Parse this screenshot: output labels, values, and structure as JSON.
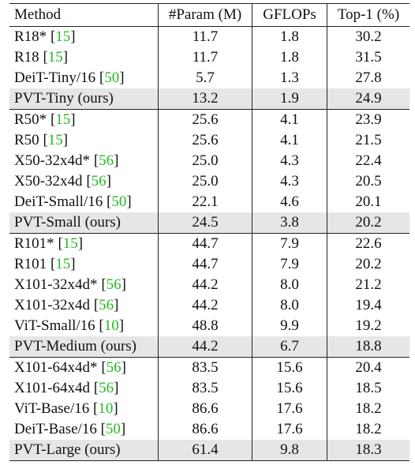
{
  "table": {
    "headers": {
      "method": "Method",
      "param": "#Param (M)",
      "gflops": "GFLOPs",
      "top1": "Top-1 (%)"
    },
    "rows": [
      {
        "name": "R18* ",
        "ref": "15",
        "param": "11.7",
        "gflops": "1.8",
        "top1": "30.2"
      },
      {
        "name": "R18 ",
        "ref": "15",
        "param": "11.7",
        "gflops": "1.8",
        "top1": "31.5"
      },
      {
        "name": "DeiT-Tiny/16 ",
        "ref": "50",
        "param": "5.7",
        "gflops": "1.3",
        "top1": "27.8"
      },
      {
        "name": "PVT-Tiny (ours)",
        "ref": "",
        "param": "13.2",
        "gflops": "1.9",
        "top1": "24.9"
      },
      {
        "name": "R50* ",
        "ref": "15",
        "param": "25.6",
        "gflops": "4.1",
        "top1": "23.9"
      },
      {
        "name": "R50 ",
        "ref": "15",
        "param": "25.6",
        "gflops": "4.1",
        "top1": "21.5"
      },
      {
        "name": "X50-32x4d* ",
        "ref": "56",
        "param": "25.0",
        "gflops": "4.3",
        "top1": "22.4"
      },
      {
        "name": "X50-32x4d ",
        "ref": "56",
        "param": "25.0",
        "gflops": "4.3",
        "top1": "20.5"
      },
      {
        "name": "DeiT-Small/16 ",
        "ref": "50",
        "param": "22.1",
        "gflops": "4.6",
        "top1": "20.1"
      },
      {
        "name": "PVT-Small (ours)",
        "ref": "",
        "param": "24.5",
        "gflops": "3.8",
        "top1": "20.2"
      },
      {
        "name": "R101* ",
        "ref": "15",
        "param": "44.7",
        "gflops": "7.9",
        "top1": "22.6"
      },
      {
        "name": "R101 ",
        "ref": "15",
        "param": "44.7",
        "gflops": "7.9",
        "top1": "20.2"
      },
      {
        "name": "X101-32x4d* ",
        "ref": "56",
        "param": "44.2",
        "gflops": "8.0",
        "top1": "21.2"
      },
      {
        "name": "X101-32x4d ",
        "ref": "56",
        "param": "44.2",
        "gflops": "8.0",
        "top1": "19.4"
      },
      {
        "name": "ViT-Small/16 ",
        "ref": "10",
        "param": "48.8",
        "gflops": "9.9",
        "top1": "19.2"
      },
      {
        "name": "PVT-Medium (ours)",
        "ref": "",
        "param": "44.2",
        "gflops": "6.7",
        "top1": "18.8"
      },
      {
        "name": "X101-64x4d* ",
        "ref": "56",
        "param": "83.5",
        "gflops": "15.6",
        "top1": "20.4"
      },
      {
        "name": "X101-64x4d ",
        "ref": "56",
        "param": "83.5",
        "gflops": "15.6",
        "top1": "18.5"
      },
      {
        "name": "ViT-Base/16 ",
        "ref": "10",
        "param": "86.6",
        "gflops": "17.6",
        "top1": "18.2"
      },
      {
        "name": "DeiT-Base/16 ",
        "ref": "50",
        "param": "86.6",
        "gflops": "17.6",
        "top1": "18.2"
      },
      {
        "name": "PVT-Large (ours)",
        "ref": "",
        "param": "61.4",
        "gflops": "9.8",
        "top1": "18.3"
      }
    ]
  },
  "colors": {
    "reference_link": "#22bb22",
    "highlight_row": "#e6e6e6"
  }
}
